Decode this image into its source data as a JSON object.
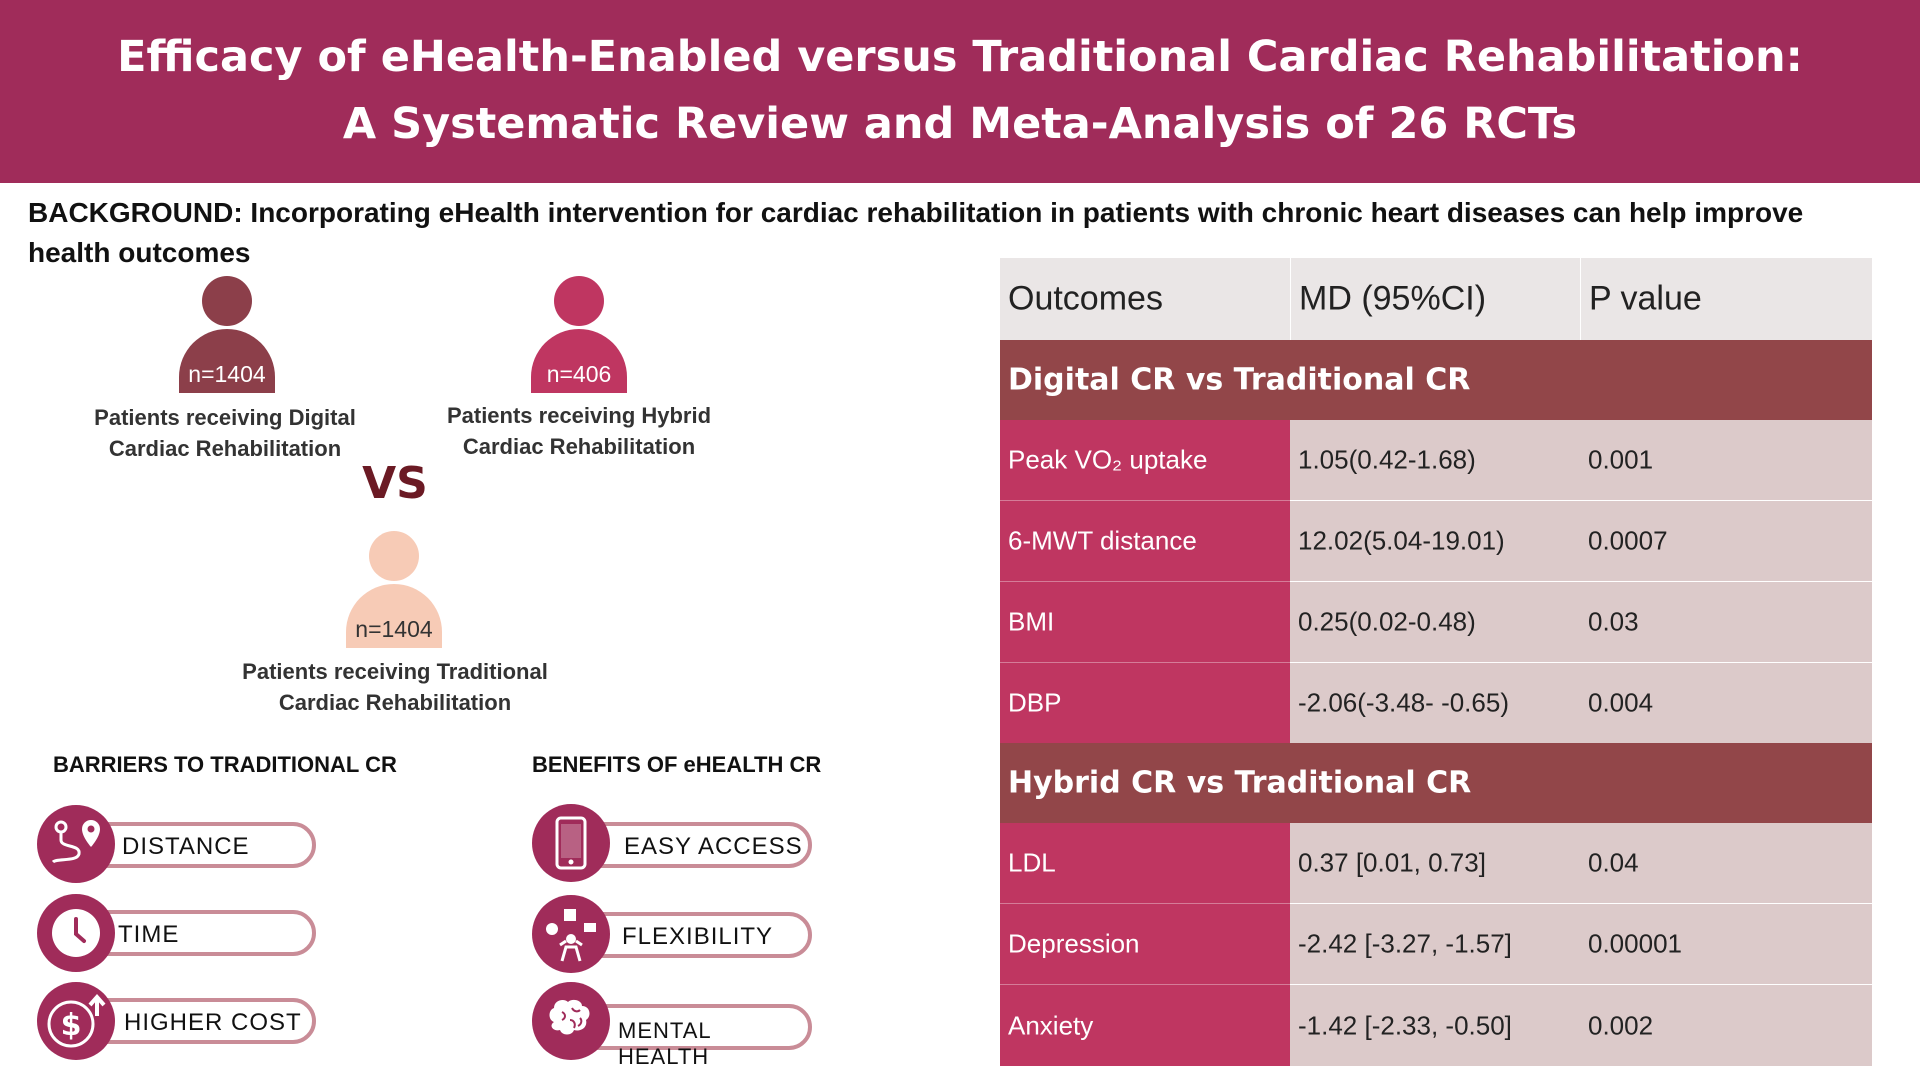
{
  "header": {
    "title_line1": "Efficacy of eHealth-Enabled versus Traditional Cardiac Rehabilitation:",
    "title_line2": "A Systematic Review and Meta-Analysis of 26 RCTs"
  },
  "background": {
    "text": "BACKGROUND:  Incorporating eHealth intervention for cardiac rehabilitation in patients with chronic heart diseases can help improve health outcomes"
  },
  "groups": {
    "digital": {
      "count": "n=1404",
      "label_line1": "Patients receiving Digital",
      "label_line2": "Cardiac Rehabilitation"
    },
    "hybrid": {
      "count": "n=406",
      "label_line1": "Patients receiving Hybrid",
      "label_line2": "Cardiac Rehabilitation"
    },
    "traditional": {
      "count": "n=1404",
      "label_line1": "Patients receiving Traditional",
      "label_line2": "Cardiac Rehabilitation"
    },
    "vs": "VS"
  },
  "barriers": {
    "title": "BARRIERS TO TRADITIONAL CR",
    "items": [
      {
        "label": "DISTANCE",
        "icon": "route-pin-icon"
      },
      {
        "label": "TIME",
        "icon": "clock-icon"
      },
      {
        "label": "HIGHER COST",
        "icon": "dollar-up-icon"
      }
    ]
  },
  "benefits": {
    "title": "BENEFITS OF eHEALTH CR",
    "items": [
      {
        "label": "EASY ACCESS",
        "icon": "smartphone-icon"
      },
      {
        "label": "FLEXIBILITY",
        "icon": "flexibility-icon"
      },
      {
        "label": "MENTAL HEALTH",
        "icon": "brain-icon"
      }
    ]
  },
  "table": {
    "headers": [
      "Outcomes",
      "MD (95%CI)",
      "P value"
    ],
    "groups": [
      {
        "title": "Digital CR vs Traditional CR",
        "rows": [
          {
            "outcome": "Peak VO₂ uptake",
            "md": "1.05(0.42-1.68)",
            "p": "0.001"
          },
          {
            "outcome": "6-MWT distance",
            "md": "12.02(5.04-19.01)",
            "p": "0.0007"
          },
          {
            "outcome": "BMI",
            "md": "0.25(0.02-0.48)",
            "p": "0.03"
          },
          {
            "outcome": "DBP",
            "md": "-2.06(-3.48- -0.65)",
            "p": "0.004"
          }
        ]
      },
      {
        "title": "Hybrid CR vs Traditional CR",
        "rows": [
          {
            "outcome": "LDL",
            "md": "0.37 [0.01, 0.73]",
            "p": "0.04"
          },
          {
            "outcome": "Depression",
            "md": "-2.42 [-3.27, -1.57]",
            "p": "0.00001"
          },
          {
            "outcome": "Anxiety",
            "md": "-1.42 [-2.33, -0.50]",
            "p": "0.002"
          }
        ]
      }
    ]
  },
  "colors": {
    "header_bg": "#a02c5a",
    "group_row": "#924649",
    "outcome_cell": "#bf3661",
    "value_cell": "#dccaca"
  }
}
